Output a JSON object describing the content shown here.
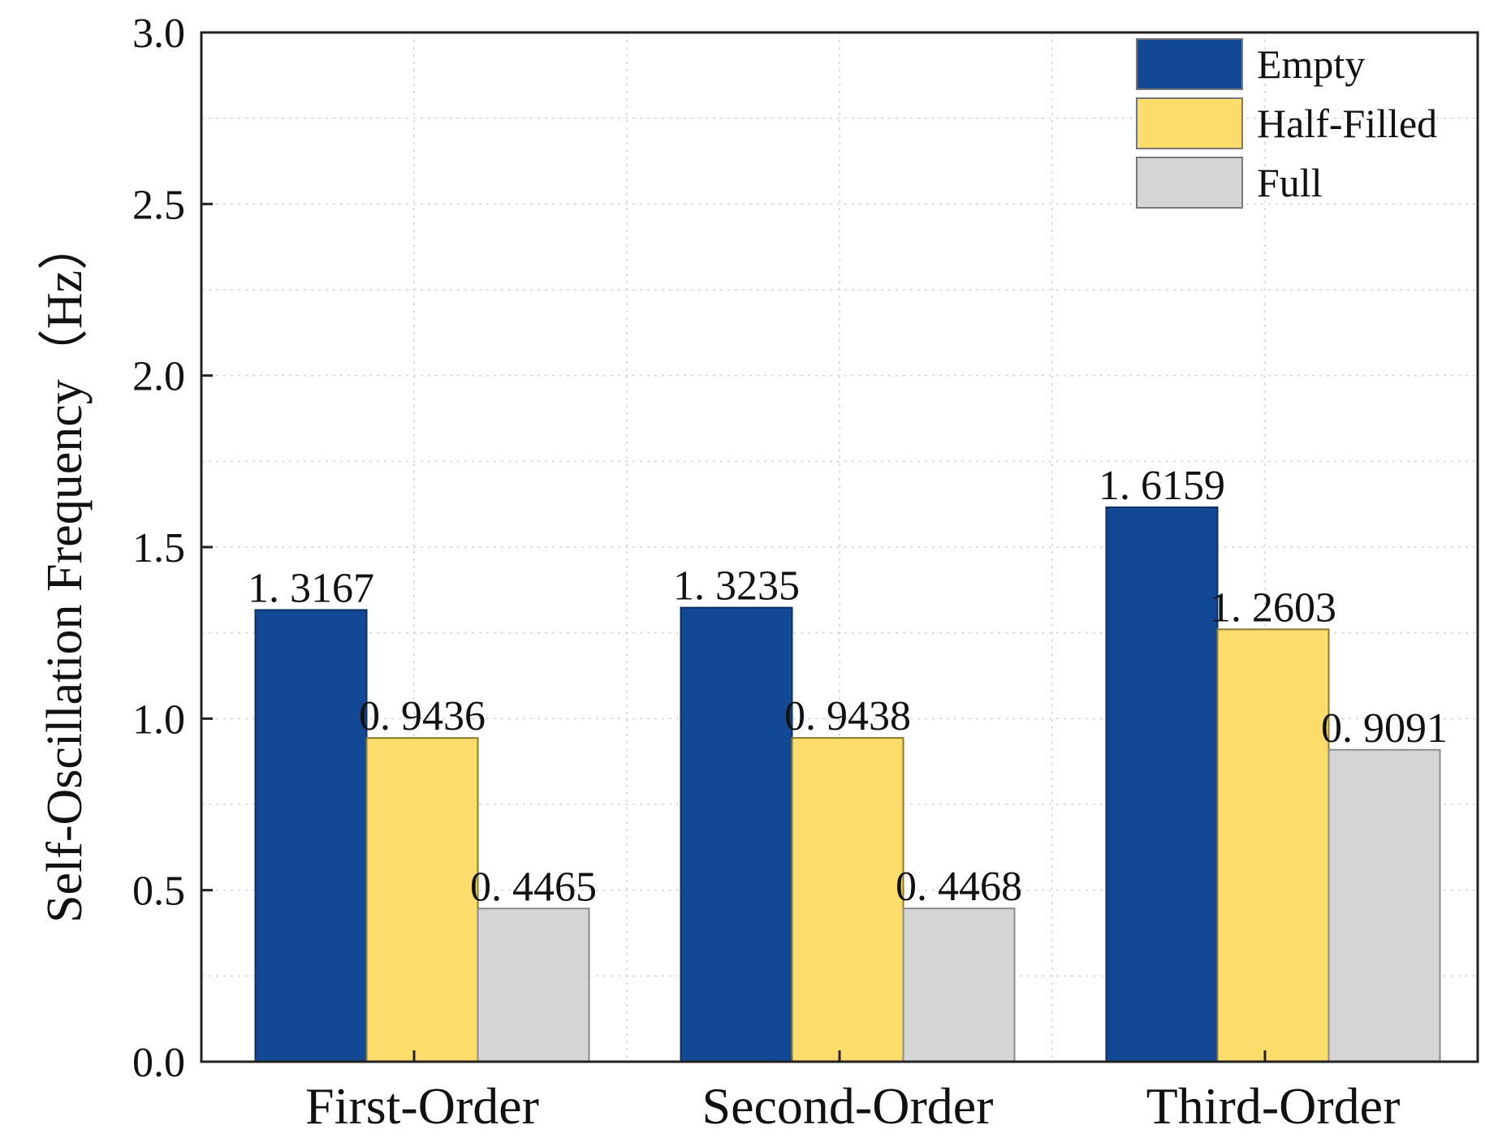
{
  "chart_data": {
    "type": "bar",
    "title": "",
    "xlabel": "",
    "ylabel": "Self-Oscillation Frequency（Hz）",
    "ylim": [
      0,
      3.0
    ],
    "yticks": [
      "0.0",
      "0.5",
      "1.0",
      "1.5",
      "2.0",
      "2.5",
      "3.0"
    ],
    "grid": true,
    "legend_position": "top-right",
    "categories": [
      "First-Order",
      "Second-Order",
      "Third-Order"
    ],
    "series": [
      {
        "name": "Empty",
        "color": "#134895",
        "values": [
          1.3167,
          1.3235,
          1.6159
        ],
        "labels": [
          "1. 3167",
          "1. 3235",
          "1. 6159"
        ]
      },
      {
        "name": "Half-Filled",
        "color": "#FCDC6A",
        "values": [
          0.9436,
          0.9438,
          1.2603
        ],
        "labels": [
          "0. 9436",
          "0. 9438",
          "1. 2603"
        ]
      },
      {
        "name": "Full",
        "color": "#D5D5D5",
        "values": [
          0.4465,
          0.4468,
          0.9091
        ],
        "labels": [
          "0. 4465",
          "0. 4468",
          "0. 9091"
        ]
      }
    ]
  }
}
